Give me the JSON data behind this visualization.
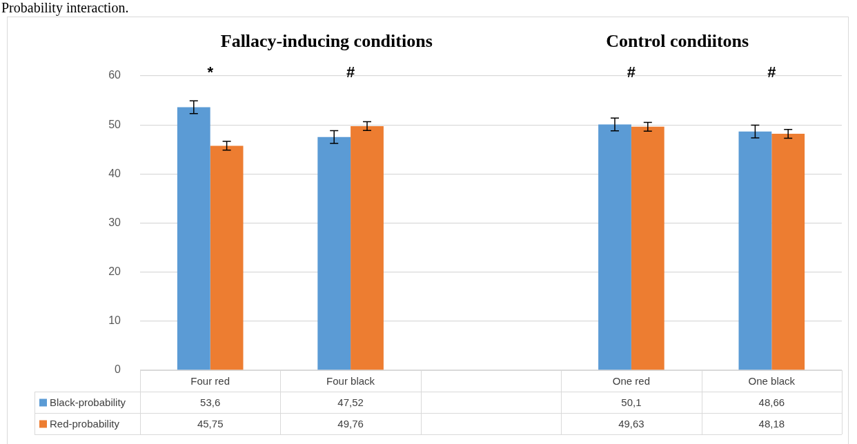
{
  "chart_data": {
    "type": "bar",
    "title": "Probability interaction.",
    "categories": [
      "Four red",
      "Four black",
      null,
      "One red",
      "One black"
    ],
    "series": [
      {
        "name": "Black-probability",
        "color": "#5b9bd5",
        "values": [
          53.6,
          47.52,
          null,
          50.1,
          48.66
        ],
        "errors": [
          1.3,
          1.3,
          null,
          1.3,
          1.3
        ],
        "value_labels": [
          "53,6",
          "47,52",
          null,
          "50,1",
          "48,66"
        ]
      },
      {
        "name": "Red-probability",
        "color": "#ed7d31",
        "values": [
          45.75,
          49.76,
          null,
          49.63,
          48.18
        ],
        "errors": [
          0.9,
          0.9,
          null,
          0.9,
          0.9
        ],
        "value_labels": [
          "45,75",
          "49,76",
          null,
          "49,63",
          "48,18"
        ]
      }
    ],
    "ylim": [
      0,
      60
    ],
    "yticks": [
      0,
      10,
      20,
      30,
      40,
      50,
      60
    ],
    "grid": "y",
    "legend": "bottom",
    "annotations": [
      "Fallacy-inducing conditions",
      "Control condiitons",
      "*",
      "#",
      "#",
      "#"
    ]
  }
}
